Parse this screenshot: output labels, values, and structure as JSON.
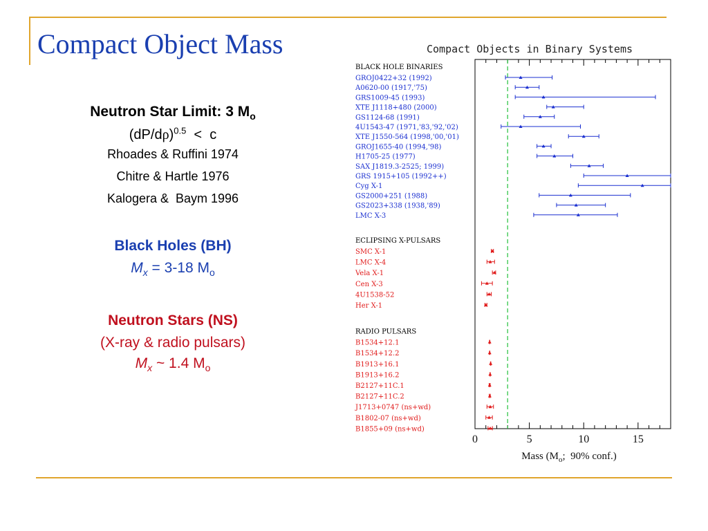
{
  "slide_title": "Compact Object Mass",
  "left": {
    "ns_limit": {
      "text": "Neutron Star Limit:  3 M",
      "sub": "o"
    },
    "eos": {
      "prefix": "(dP/d",
      "rho": "ρ",
      "close": ")",
      "sup": "0.5",
      "suffix": "  <  c"
    },
    "refs": [
      "Rhoades & Ruffini 1974",
      "Chitre & Hartle 1976",
      "Kalogera &  Baym 1996"
    ],
    "bh_heading": "Black Holes (BH)",
    "bh_mass": {
      "var": "M",
      "var_sub": "x",
      "rel": " = 3-18 M",
      "unit_sub": "o"
    },
    "ns_heading": "Neutron Stars (NS)",
    "ns_note": "(X-ray & radio pulsars)",
    "ns_mass": {
      "var": "M",
      "var_sub": "x",
      "rel": " ~ 1.4 M",
      "unit_sub": "o"
    }
  },
  "chart_data": {
    "type": "scatter",
    "title": "Compact Objects in Binary Systems",
    "xlabel": "Mass (M",
    "xlabel_sub": "o",
    "xlabel_suffix": ";  90% conf.)",
    "xlim": [
      0,
      18
    ],
    "xticks": [
      0,
      5,
      10,
      15
    ],
    "reference_line": {
      "x": 3,
      "style": "dashed",
      "color": "#22c03a"
    },
    "colors": {
      "bh": "#1a2fd0",
      "ns": "#e01a1a"
    },
    "groups": [
      {
        "name": "BLACK HOLE BINARIES",
        "color": "#1a2fd0",
        "points": [
          {
            "label": "GROJ0422+32 (1992)",
            "value": 4.2,
            "lo": 2.8,
            "hi": 7.1
          },
          {
            "label": "A0620-00 (1917,'75)",
            "value": 4.8,
            "lo": 3.7,
            "hi": 5.9
          },
          {
            "label": "GRS1009-45 (1993)",
            "value": 6.3,
            "lo": 3.7,
            "hi": 16.6
          },
          {
            "label": "XTE J1118+480 (2000)",
            "value": 7.2,
            "lo": 6.6,
            "hi": 10.0
          },
          {
            "label": "GS1124-68 (1991)",
            "value": 6.0,
            "lo": 4.5,
            "hi": 7.3
          },
          {
            "label": "4U1543-47 (1971,'83,'92,'02)",
            "value": 4.2,
            "lo": 2.4,
            "hi": 9.7
          },
          {
            "label": "XTE J1550-564 (1998,'00,'01)",
            "value": 10.0,
            "lo": 8.6,
            "hi": 11.4
          },
          {
            "label": "GROJ1655-40 (1994,'98)",
            "value": 6.3,
            "lo": 5.7,
            "hi": 7.0
          },
          {
            "label": "H1705-25 (1977)",
            "value": 7.3,
            "lo": 5.7,
            "hi": 9.0
          },
          {
            "label": "SAX J1819.3-2525; 1999)",
            "value": 10.5,
            "lo": 8.8,
            "hi": 11.8
          },
          {
            "label": "GRS 1915+105 (1992++)",
            "value": 14.0,
            "lo": 10.0,
            "hi": 18.0
          },
          {
            "label": "Cyg X-1",
            "value": 15.4,
            "lo": 9.5,
            "hi": 18.0
          },
          {
            "label": "GS2000+251 (1988)",
            "value": 8.8,
            "lo": 5.9,
            "hi": 14.3
          },
          {
            "label": "GS2023+338 (1938,'89)",
            "value": 9.3,
            "lo": 7.5,
            "hi": 12.0
          },
          {
            "label": "LMC X-3",
            "value": 9.5,
            "lo": 5.4,
            "hi": 13.1
          }
        ]
      },
      {
        "name": "ECLIPSING X-PULSARS",
        "color": "#e01a1a",
        "points": [
          {
            "label": "SMC X-1",
            "value": 1.6,
            "lo": 1.5,
            "hi": 1.7
          },
          {
            "label": "LMC X-4",
            "value": 1.4,
            "lo": 1.1,
            "hi": 1.8
          },
          {
            "label": "Vela X-1",
            "value": 1.8,
            "lo": 1.6,
            "hi": 1.9
          },
          {
            "label": "Cen X-3",
            "value": 1.1,
            "lo": 0.6,
            "hi": 1.6
          },
          {
            "label": "4U1538-52",
            "value": 1.3,
            "lo": 1.1,
            "hi": 1.5
          },
          {
            "label": "Her X-1",
            "value": 1.0,
            "lo": 0.9,
            "hi": 1.1
          }
        ]
      },
      {
        "name": "RADIO PULSARS",
        "color": "#e01a1a",
        "points": [
          {
            "label": "B1534+12.1",
            "value": 1.35,
            "lo": 1.33,
            "hi": 1.37
          },
          {
            "label": "B1534+12.2",
            "value": 1.35,
            "lo": 1.33,
            "hi": 1.37
          },
          {
            "label": "B1913+16.1",
            "value": 1.44,
            "lo": 1.42,
            "hi": 1.46
          },
          {
            "label": "B1913+16.2",
            "value": 1.39,
            "lo": 1.37,
            "hi": 1.41
          },
          {
            "label": "B2127+11C.1",
            "value": 1.35,
            "lo": 1.3,
            "hi": 1.4
          },
          {
            "label": "B2127+11C.2",
            "value": 1.36,
            "lo": 1.31,
            "hi": 1.41
          },
          {
            "label": "J1713+0747 (ns+wd)",
            "value": 1.4,
            "lo": 1.1,
            "hi": 1.7
          },
          {
            "label": "B1802-07 (ns+wd)",
            "value": 1.3,
            "lo": 1.0,
            "hi": 1.6
          },
          {
            "label": "B1855+09 (ns+wd)",
            "value": 1.4,
            "lo": 1.2,
            "hi": 1.6
          }
        ]
      }
    ]
  }
}
